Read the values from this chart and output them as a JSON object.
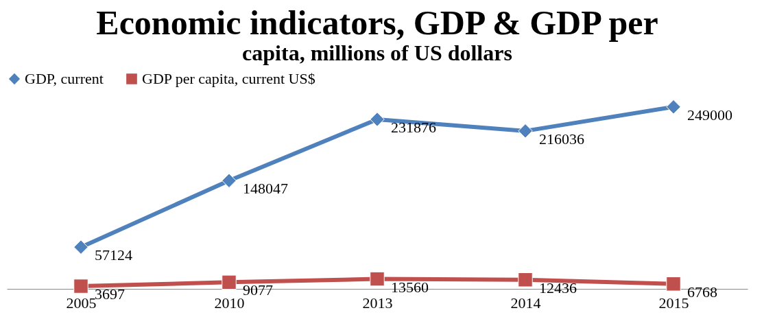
{
  "chart_data": {
    "type": "line",
    "title": "Economic indicators, GDP & GDP per",
    "subtitle": "capita,  millions of US  dollars",
    "categories": [
      "2005",
      "2010",
      "2013",
      "2014",
      "2015"
    ],
    "series": [
      {
        "name": "GDP, current",
        "color": "#4f81bd",
        "marker": "diamond",
        "values": [
          57124,
          148047,
          231876,
          216036,
          249000
        ]
      },
      {
        "name": "GDP per capita, current US$",
        "color": "#c0504d",
        "marker": "square",
        "values": [
          3697,
          9077,
          13560,
          12436,
          6768
        ]
      }
    ],
    "data_labels": true,
    "legend": "top",
    "grid": false,
    "line_style": "solid"
  }
}
